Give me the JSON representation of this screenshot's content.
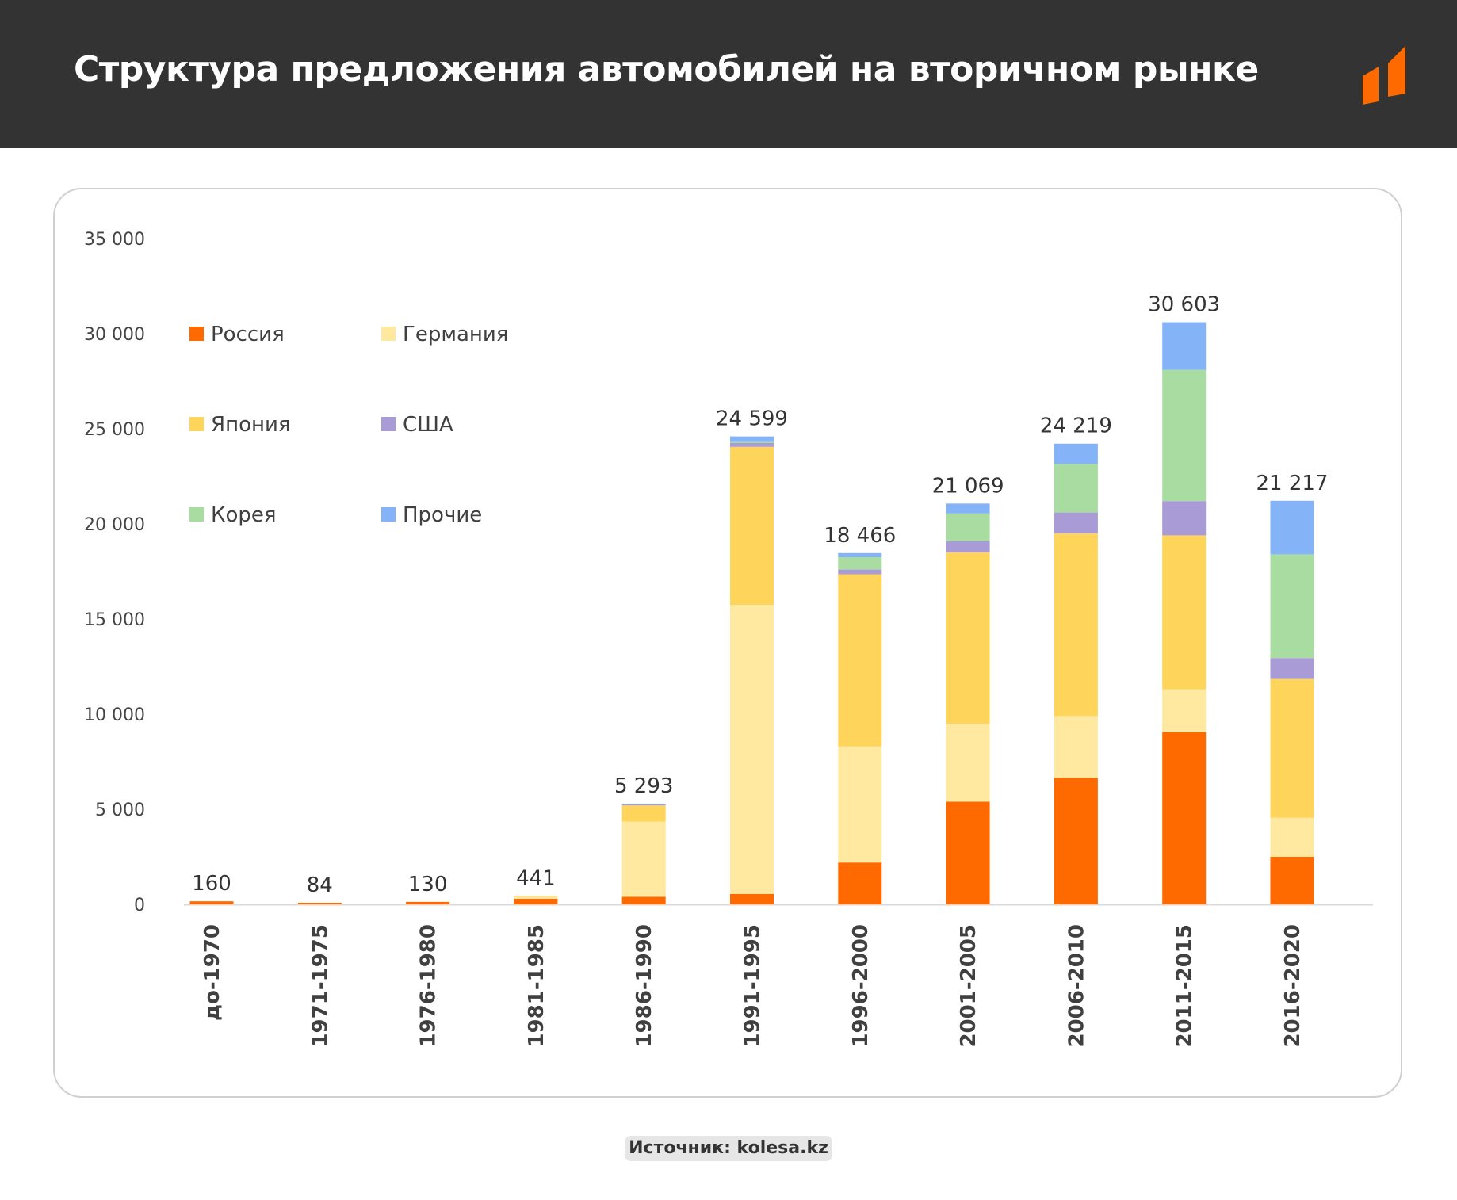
{
  "header": {
    "title": "Структура предложения автомобилей на вторичном рынке"
  },
  "source": {
    "label": "Источник: kolesa.kz"
  },
  "colors": {
    "header_bg": "#333333",
    "brand_orange": "#FF6A00"
  },
  "chart_data": {
    "type": "bar",
    "stacked": true,
    "categories": [
      "до-1970",
      "1971-1975",
      "1976-1980",
      "1981-1985",
      "1986-1990",
      "1991-1995",
      "1996-2000",
      "2001-2005",
      "2006-2010",
      "2011-2015",
      "2016-2020"
    ],
    "series": [
      {
        "name": "Россия",
        "color": "#FF6A00",
        "values": [
          160,
          84,
          130,
          300,
          400,
          550,
          2200,
          5400,
          6650,
          9050,
          2500
        ]
      },
      {
        "name": "Германия",
        "color": "#FFE8A0",
        "values": [
          0,
          0,
          0,
          120,
          3950,
          15200,
          6100,
          4100,
          3250,
          2250,
          2050
        ]
      },
      {
        "name": "Япония",
        "color": "#FFD45A",
        "values": [
          0,
          0,
          0,
          21,
          850,
          8300,
          9050,
          9000,
          9600,
          8100,
          7300
        ]
      },
      {
        "name": "США",
        "color": "#A89BD6",
        "values": [
          0,
          0,
          0,
          0,
          60,
          200,
          250,
          600,
          1100,
          1800,
          1100
        ]
      },
      {
        "name": "Корея",
        "color": "#A8DCA0",
        "values": [
          0,
          0,
          0,
          0,
          0,
          60,
          650,
          1450,
          2550,
          6900,
          5450
        ]
      },
      {
        "name": "Прочие",
        "color": "#85B3F8",
        "values": [
          0,
          0,
          0,
          0,
          33,
          289,
          216,
          519,
          1069,
          2503,
          2817
        ]
      }
    ],
    "totals": [
      160,
      84,
      130,
      441,
      5293,
      24599,
      18466,
      21069,
      24219,
      30603,
      21217
    ],
    "total_labels": [
      "160",
      "84",
      "130",
      "441",
      "5 293",
      "24 599",
      "18 466",
      "21 069",
      "24 219",
      "30 603",
      "21 217"
    ],
    "ylim": [
      0,
      35000
    ],
    "yticks": [
      0,
      5000,
      10000,
      15000,
      20000,
      25000,
      30000,
      35000
    ],
    "ytick_labels": [
      "0",
      "5 000",
      "10 000",
      "15 000",
      "20 000",
      "25 000",
      "30 000",
      "35 000"
    ],
    "legend_position": "top-left",
    "grid": false,
    "xlabel": "",
    "ylabel": ""
  }
}
